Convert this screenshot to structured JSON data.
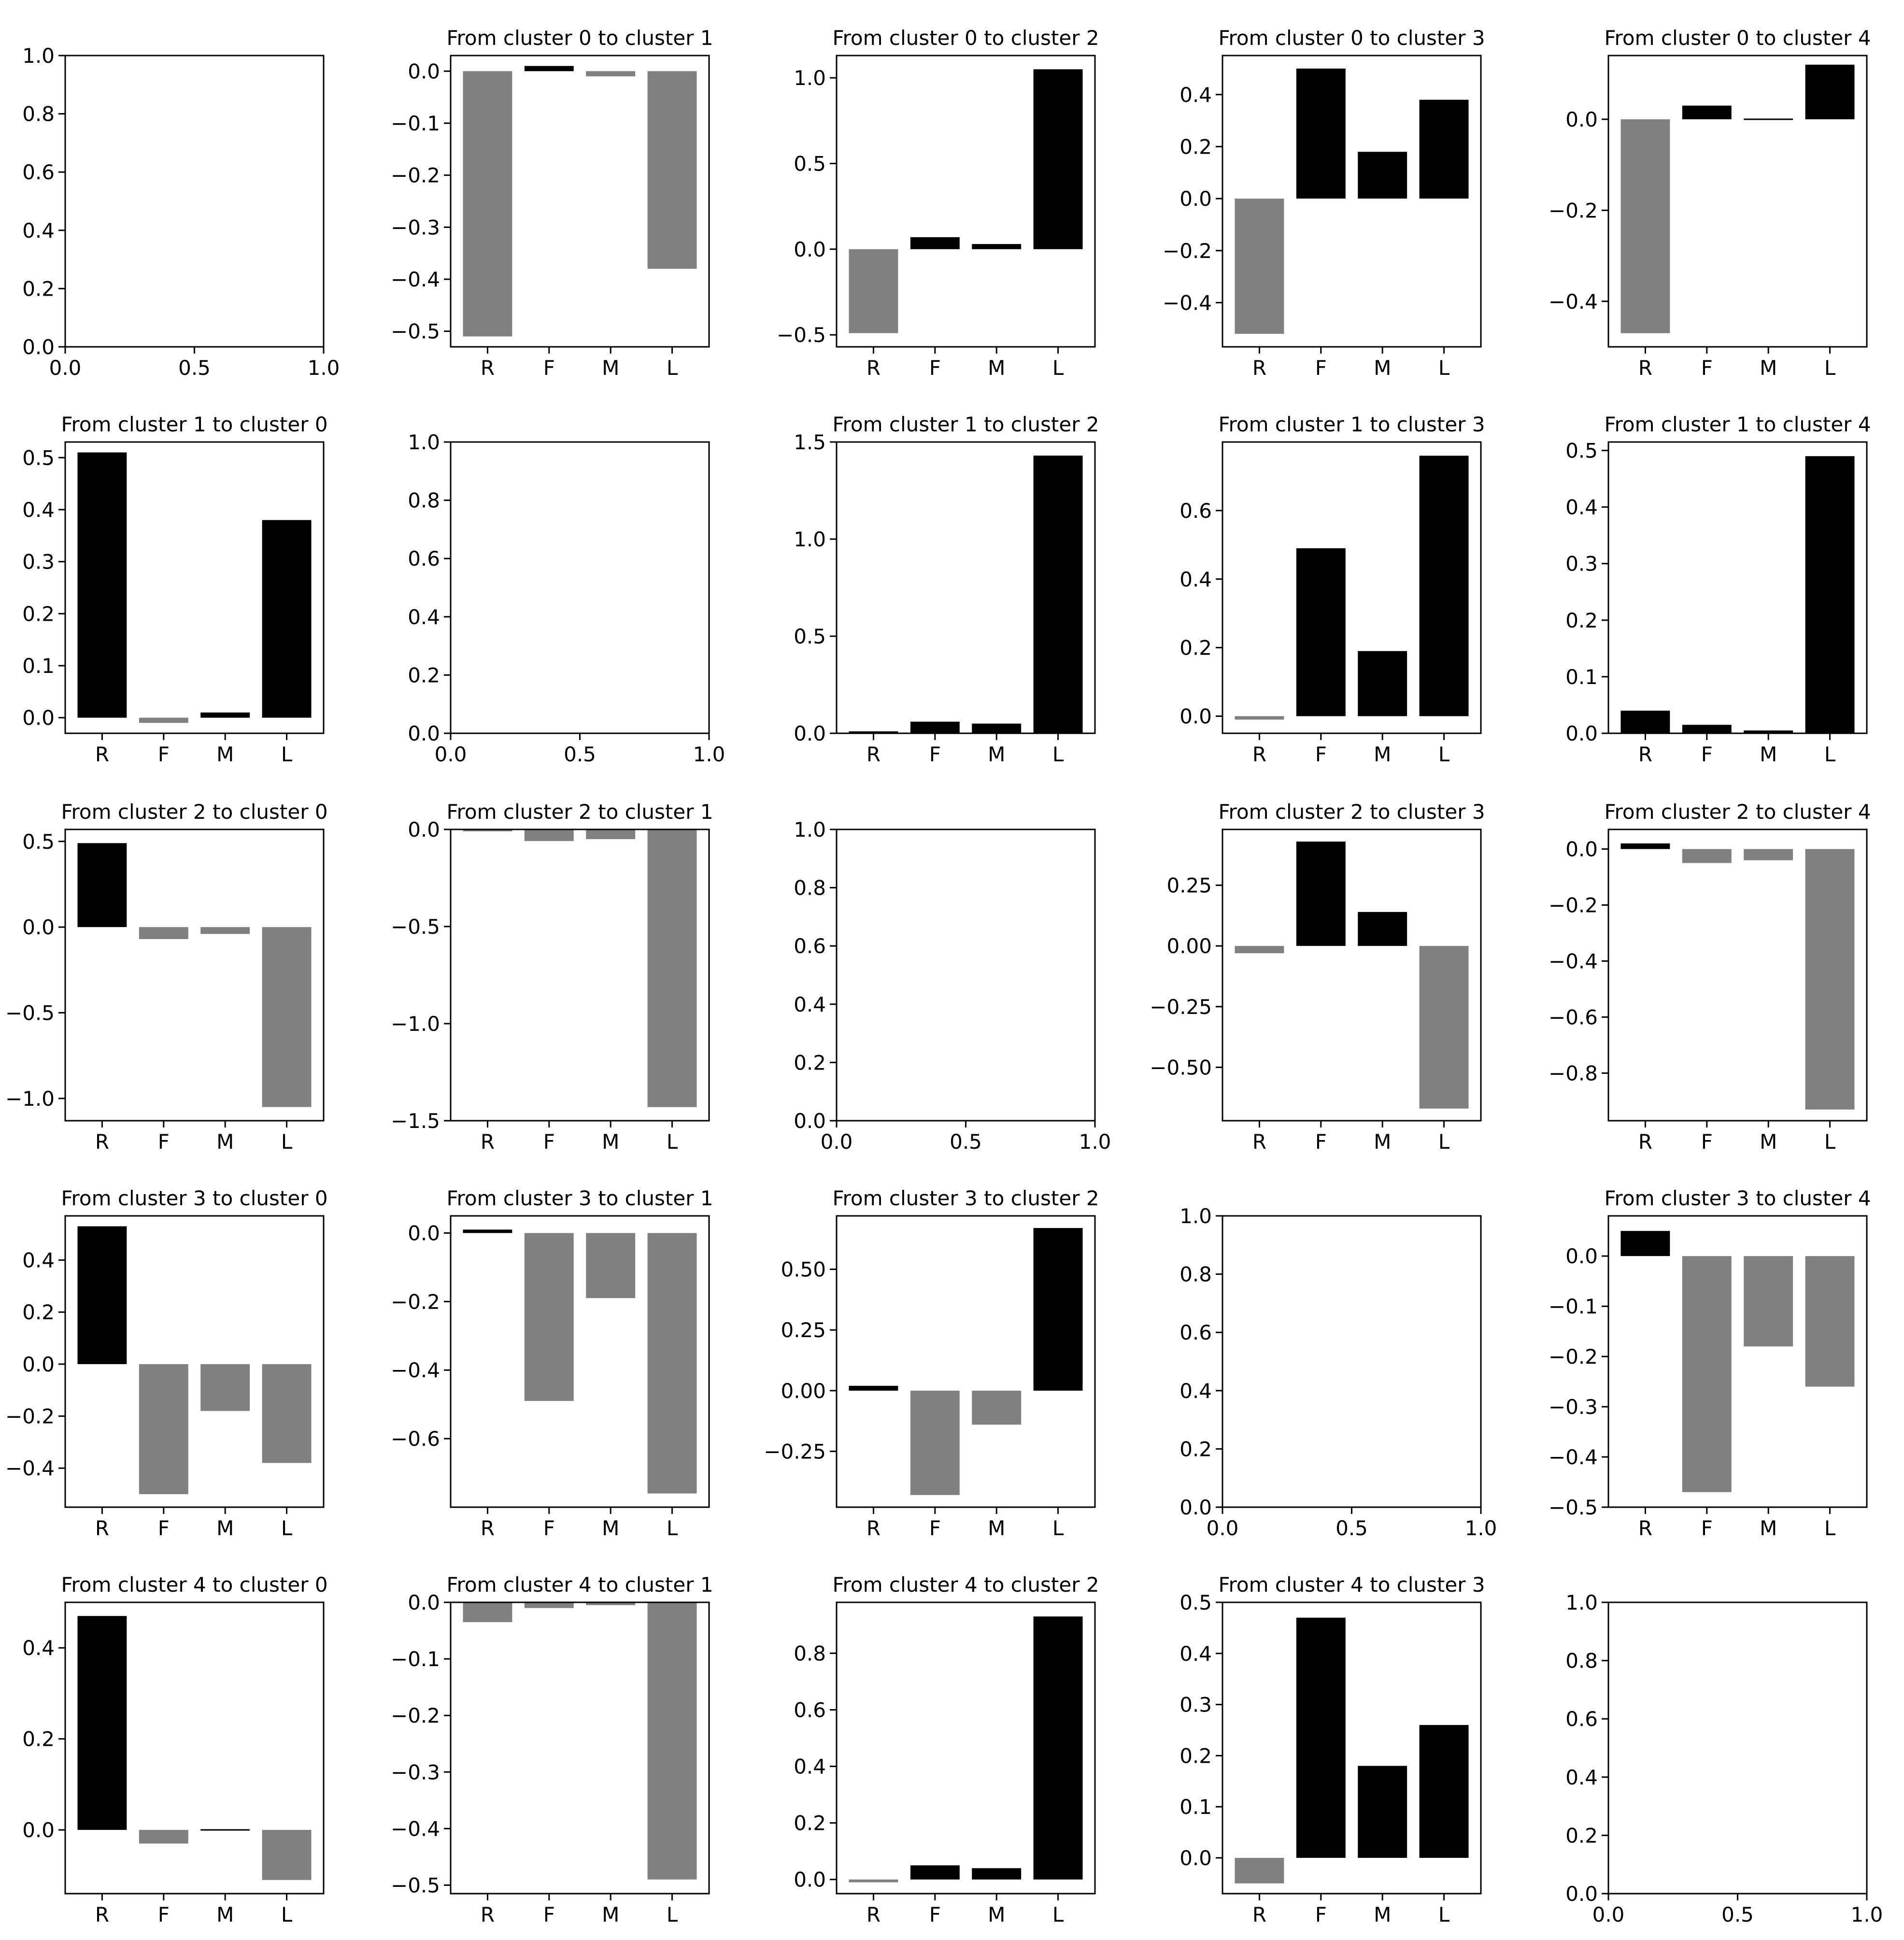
{
  "figure": {
    "categories": [
      "R",
      "F",
      "M",
      "L"
    ],
    "positive_color": "#000000",
    "negative_color": "#808080"
  },
  "chart_data": [
    {
      "row": 0,
      "col": 0,
      "type": "empty",
      "title": "",
      "xlim": [
        0,
        1
      ],
      "ylim": [
        0,
        1
      ],
      "yticks": [
        0.0,
        0.2,
        0.4,
        0.6,
        0.8,
        1.0
      ],
      "xticks": [
        0.0,
        0.5,
        1.0
      ]
    },
    {
      "row": 0,
      "col": 1,
      "type": "bar",
      "title": "From cluster 0 to cluster 1",
      "categories": [
        "R",
        "F",
        "M",
        "L"
      ],
      "values": [
        -0.51,
        0.01,
        -0.01,
        -0.38
      ],
      "ylim": [
        -0.53,
        0.03
      ],
      "yticks": [
        0.0,
        -0.1,
        -0.2,
        -0.3,
        -0.4,
        -0.5
      ]
    },
    {
      "row": 0,
      "col": 2,
      "type": "bar",
      "title": "From cluster 0 to cluster 2",
      "categories": [
        "R",
        "F",
        "M",
        "L"
      ],
      "values": [
        -0.49,
        0.07,
        0.03,
        1.05
      ],
      "ylim": [
        -0.57,
        1.13
      ],
      "yticks": [
        1.0,
        0.5,
        0.0,
        -0.5
      ]
    },
    {
      "row": 0,
      "col": 3,
      "type": "bar",
      "title": "From cluster 0 to cluster 3",
      "categories": [
        "R",
        "F",
        "M",
        "L"
      ],
      "values": [
        -0.52,
        0.5,
        0.18,
        0.38
      ],
      "ylim": [
        -0.57,
        0.55
      ],
      "yticks": [
        0.4,
        0.2,
        0.0,
        -0.2,
        -0.4
      ]
    },
    {
      "row": 0,
      "col": 4,
      "type": "bar",
      "title": "From cluster 0 to cluster 4",
      "categories": [
        "R",
        "F",
        "M",
        "L"
      ],
      "values": [
        -0.47,
        0.03,
        0.0,
        0.12
      ],
      "ylim": [
        -0.5,
        0.14
      ],
      "yticks": [
        0.0,
        -0.2,
        -0.4
      ]
    },
    {
      "row": 1,
      "col": 0,
      "type": "bar",
      "title": "From cluster 1 to cluster 0",
      "categories": [
        "R",
        "F",
        "M",
        "L"
      ],
      "values": [
        0.51,
        -0.01,
        0.01,
        0.38
      ],
      "ylim": [
        -0.03,
        0.53
      ],
      "yticks": [
        0.5,
        0.4,
        0.3,
        0.2,
        0.1,
        0.0
      ]
    },
    {
      "row": 1,
      "col": 1,
      "type": "empty",
      "title": "",
      "xlim": [
        0,
        1
      ],
      "ylim": [
        0,
        1
      ],
      "yticks": [
        0.0,
        0.2,
        0.4,
        0.6,
        0.8,
        1.0
      ],
      "xticks": [
        0.0,
        0.5,
        1.0
      ]
    },
    {
      "row": 1,
      "col": 2,
      "type": "bar",
      "title": "From cluster 1 to cluster 2",
      "categories": [
        "R",
        "F",
        "M",
        "L"
      ],
      "values": [
        0.01,
        0.06,
        0.05,
        1.43
      ],
      "ylim": [
        0,
        1.5
      ],
      "yticks": [
        1.5,
        1.0,
        0.5,
        0.0
      ]
    },
    {
      "row": 1,
      "col": 3,
      "type": "bar",
      "title": "From cluster 1 to cluster 3",
      "categories": [
        "R",
        "F",
        "M",
        "L"
      ],
      "values": [
        -0.01,
        0.49,
        0.19,
        0.76
      ],
      "ylim": [
        -0.05,
        0.8
      ],
      "yticks": [
        0.6,
        0.4,
        0.2,
        0.0
      ]
    },
    {
      "row": 1,
      "col": 4,
      "type": "bar",
      "title": "From cluster 1 to cluster 4",
      "categories": [
        "R",
        "F",
        "M",
        "L"
      ],
      "values": [
        0.04,
        0.015,
        0.005,
        0.49
      ],
      "ylim": [
        0,
        0.515
      ],
      "yticks": [
        0.5,
        0.4,
        0.3,
        0.2,
        0.1,
        0.0
      ]
    },
    {
      "row": 2,
      "col": 0,
      "type": "bar",
      "title": "From cluster 2 to cluster 0",
      "categories": [
        "R",
        "F",
        "M",
        "L"
      ],
      "values": [
        0.49,
        -0.07,
        -0.04,
        -1.05
      ],
      "ylim": [
        -1.13,
        0.57
      ],
      "yticks": [
        0.5,
        0.0,
        -0.5,
        -1.0
      ]
    },
    {
      "row": 2,
      "col": 1,
      "type": "bar",
      "title": "From cluster 2 to cluster 1",
      "categories": [
        "R",
        "F",
        "M",
        "L"
      ],
      "values": [
        -0.01,
        -0.06,
        -0.05,
        -1.43
      ],
      "ylim": [
        -1.5,
        0
      ],
      "yticks": [
        0.0,
        -0.5,
        -1.0,
        -1.5
      ]
    },
    {
      "row": 2,
      "col": 2,
      "type": "empty",
      "title": "",
      "xlim": [
        0,
        1
      ],
      "ylim": [
        0,
        1
      ],
      "yticks": [
        0.0,
        0.2,
        0.4,
        0.6,
        0.8,
        1.0
      ],
      "xticks": [
        0.0,
        0.5,
        1.0
      ]
    },
    {
      "row": 2,
      "col": 3,
      "type": "bar",
      "title": "From cluster 2 to cluster 3",
      "categories": [
        "R",
        "F",
        "M",
        "L"
      ],
      "values": [
        -0.03,
        0.43,
        0.14,
        -0.67
      ],
      "ylim": [
        -0.72,
        0.48
      ],
      "yticks": [
        0.25,
        0.0,
        -0.25,
        -0.5
      ],
      "ytick_labels": [
        "0.25",
        "0.00",
        "−0.25",
        "−0.50"
      ]
    },
    {
      "row": 2,
      "col": 4,
      "type": "bar",
      "title": "From cluster 2 to cluster 4",
      "categories": [
        "R",
        "F",
        "M",
        "L"
      ],
      "values": [
        0.02,
        -0.05,
        -0.04,
        -0.93
      ],
      "ylim": [
        -0.97,
        0.07
      ],
      "yticks": [
        0.0,
        -0.2,
        -0.4,
        -0.6,
        -0.8
      ]
    },
    {
      "row": 3,
      "col": 0,
      "type": "bar",
      "title": "From cluster 3 to cluster 0",
      "categories": [
        "R",
        "F",
        "M",
        "L"
      ],
      "values": [
        0.53,
        -0.5,
        -0.18,
        -0.38
      ],
      "ylim": [
        -0.55,
        0.57
      ],
      "yticks": [
        0.4,
        0.2,
        0.0,
        -0.2,
        -0.4
      ]
    },
    {
      "row": 3,
      "col": 1,
      "type": "bar",
      "title": "From cluster 3 to cluster 1",
      "categories": [
        "R",
        "F",
        "M",
        "L"
      ],
      "values": [
        0.01,
        -0.49,
        -0.19,
        -0.76
      ],
      "ylim": [
        -0.8,
        0.05
      ],
      "yticks": [
        0.0,
        -0.2,
        -0.4,
        -0.6
      ]
    },
    {
      "row": 3,
      "col": 2,
      "type": "bar",
      "title": "From cluster 3 to cluster 2",
      "categories": [
        "R",
        "F",
        "M",
        "L"
      ],
      "values": [
        0.02,
        -0.43,
        -0.14,
        0.67
      ],
      "ylim": [
        -0.48,
        0.72
      ],
      "yticks": [
        0.5,
        0.25,
        0.0,
        -0.25
      ],
      "ytick_labels": [
        "0.50",
        "0.25",
        "0.00",
        "−0.25"
      ]
    },
    {
      "row": 3,
      "col": 3,
      "type": "empty",
      "title": "",
      "xlim": [
        0,
        1
      ],
      "ylim": [
        0,
        1
      ],
      "yticks": [
        0.0,
        0.2,
        0.4,
        0.6,
        0.8,
        1.0
      ],
      "xticks": [
        0.0,
        0.5,
        1.0
      ]
    },
    {
      "row": 3,
      "col": 4,
      "type": "bar",
      "title": "From cluster 3 to cluster 4",
      "categories": [
        "R",
        "F",
        "M",
        "L"
      ],
      "values": [
        0.05,
        -0.47,
        -0.18,
        -0.26
      ],
      "ylim": [
        -0.5,
        0.08
      ],
      "yticks": [
        0.0,
        -0.1,
        -0.2,
        -0.3,
        -0.4,
        -0.5
      ]
    },
    {
      "row": 4,
      "col": 0,
      "type": "bar",
      "title": "From cluster 4 to cluster 0",
      "categories": [
        "R",
        "F",
        "M",
        "L"
      ],
      "values": [
        0.47,
        -0.03,
        0.0,
        -0.11
      ],
      "ylim": [
        -0.14,
        0.5
      ],
      "yticks": [
        0.4,
        0.2,
        0.0
      ]
    },
    {
      "row": 4,
      "col": 1,
      "type": "bar",
      "title": "From cluster 4 to cluster 1",
      "categories": [
        "R",
        "F",
        "M",
        "L"
      ],
      "values": [
        -0.035,
        -0.01,
        -0.005,
        -0.49
      ],
      "ylim": [
        -0.515,
        0
      ],
      "yticks": [
        0.0,
        -0.1,
        -0.2,
        -0.3,
        -0.4,
        -0.5
      ]
    },
    {
      "row": 4,
      "col": 2,
      "type": "bar",
      "title": "From cluster 4 to cluster 2",
      "categories": [
        "R",
        "F",
        "M",
        "L"
      ],
      "values": [
        -0.01,
        0.05,
        0.04,
        0.93
      ],
      "ylim": [
        -0.05,
        0.98
      ],
      "yticks": [
        0.8,
        0.6,
        0.4,
        0.2,
        0.0
      ]
    },
    {
      "row": 4,
      "col": 3,
      "type": "bar",
      "title": "From cluster 4 to cluster 3",
      "categories": [
        "R",
        "F",
        "M",
        "L"
      ],
      "values": [
        -0.05,
        0.47,
        0.18,
        0.26
      ],
      "ylim": [
        -0.07,
        0.5
      ],
      "yticks": [
        0.5,
        0.4,
        0.3,
        0.2,
        0.1,
        0.0
      ]
    },
    {
      "row": 4,
      "col": 4,
      "type": "empty",
      "title": "",
      "xlim": [
        0,
        1
      ],
      "ylim": [
        0,
        1
      ],
      "yticks": [
        0.0,
        0.2,
        0.4,
        0.6,
        0.8,
        1.0
      ],
      "xticks": [
        0.0,
        0.5,
        1.0
      ]
    }
  ]
}
